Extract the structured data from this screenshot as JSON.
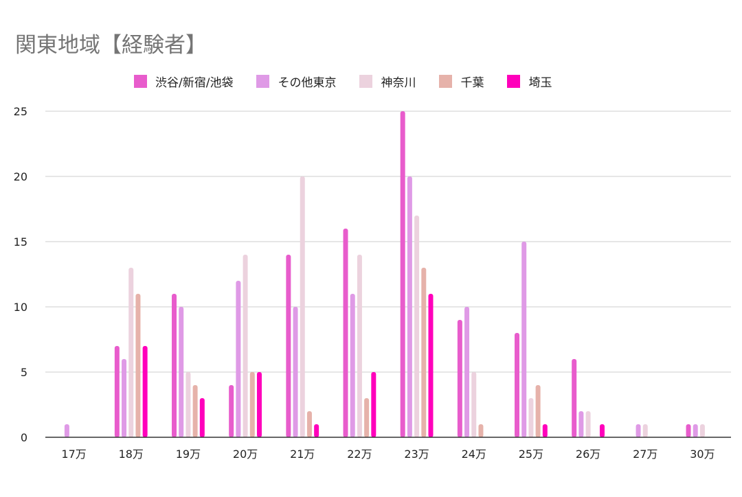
{
  "chart_data": {
    "type": "bar",
    "title": "関東地域【経験者】",
    "categories": [
      "17万",
      "18万",
      "19万",
      "20万",
      "21万",
      "22万",
      "23万",
      "24万",
      "25万",
      "26万",
      "27万",
      "30万"
    ],
    "series": [
      {
        "name": "渋谷/新宿/池袋",
        "color": "#e85ccc",
        "values": [
          0,
          7,
          11,
          4,
          14,
          16,
          25,
          9,
          8,
          6,
          0,
          1
        ]
      },
      {
        "name": "その他東京",
        "color": "#df9ae6",
        "values": [
          1,
          6,
          10,
          12,
          10,
          11,
          20,
          10,
          15,
          2,
          1,
          1
        ]
      },
      {
        "name": "神奈川",
        "color": "#ecd2de",
        "values": [
          0,
          13,
          5,
          14,
          20,
          14,
          17,
          5,
          3,
          2,
          1,
          1
        ]
      },
      {
        "name": "千葉",
        "color": "#e6b2aa",
        "values": [
          0,
          11,
          4,
          5,
          2,
          3,
          13,
          1,
          4,
          0,
          0,
          0
        ]
      },
      {
        "name": "埼玉",
        "color": "#ff00bb",
        "values": [
          0,
          7,
          3,
          5,
          1,
          5,
          11,
          0,
          1,
          1,
          0,
          0
        ]
      }
    ],
    "ylim": [
      0,
      25
    ],
    "yticks": [
      0,
      5,
      10,
      15,
      20,
      25
    ],
    "grid": true,
    "legend_position": "top"
  }
}
